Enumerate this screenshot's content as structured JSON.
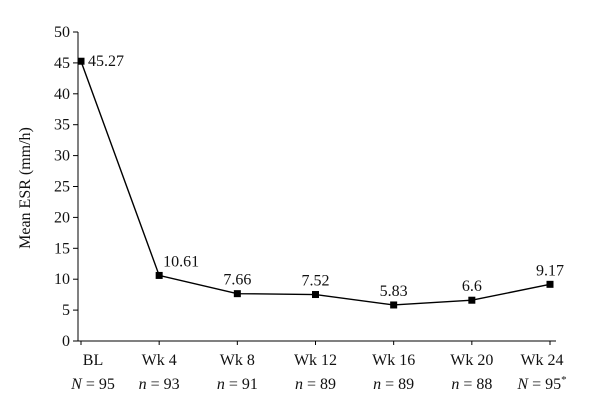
{
  "chart_data": {
    "type": "line",
    "title": "",
    "ylabel": "Mean ESR (mm/h)",
    "xlabel": "",
    "ylim": [
      0,
      50
    ],
    "yticks": [
      0,
      5,
      10,
      15,
      20,
      25,
      30,
      35,
      40,
      45,
      50
    ],
    "grid": false,
    "categories": [
      "BL",
      "Wk 4",
      "Wk 8",
      "Wk 12",
      "Wk 16",
      "Wk 20",
      "Wk 24"
    ],
    "sample_sizes": [
      {
        "symbol": "N",
        "value": "95",
        "mark": ""
      },
      {
        "symbol": "n",
        "value": "93",
        "mark": ""
      },
      {
        "symbol": "n",
        "value": "91",
        "mark": ""
      },
      {
        "symbol": "n",
        "value": "89",
        "mark": ""
      },
      {
        "symbol": "n",
        "value": "89",
        "mark": ""
      },
      {
        "symbol": "n",
        "value": "88",
        "mark": ""
      },
      {
        "symbol": "N",
        "value": "95",
        "mark": "*"
      }
    ],
    "series": [
      {
        "values": [
          45.27,
          10.61,
          7.66,
          7.52,
          5.83,
          6.6,
          9.17
        ],
        "labels": [
          "45.27",
          "10.61",
          "7.66",
          "7.52",
          "5.83",
          "6.6",
          "9.17"
        ],
        "color": "#000000"
      }
    ]
  }
}
